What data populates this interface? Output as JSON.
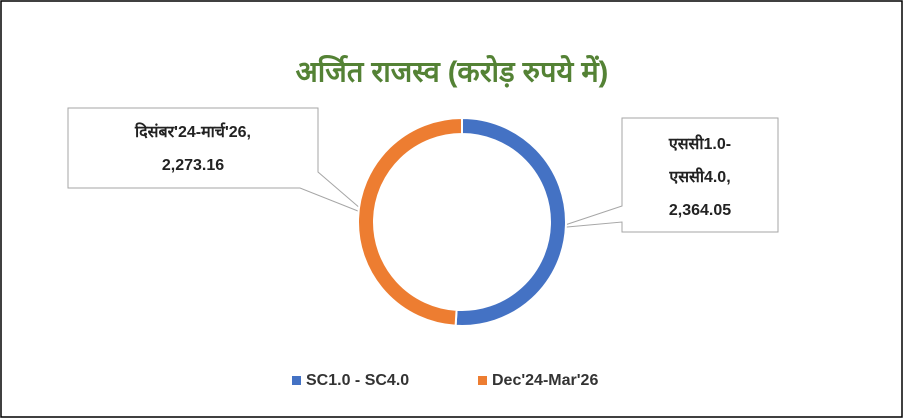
{
  "chart_data": {
    "type": "donut",
    "title": "अर्जित राजस्व (करोड़ रुपये में)",
    "categories": [
      "SC1.0 - SC4.0",
      "Dec'24-Mar'26"
    ],
    "values": [
      2364.05,
      2273.16
    ],
    "value_labels": [
      "2,364.05",
      "2,273.16"
    ],
    "data_label_names": [
      "एससी1.0-एससी4.0,",
      "दिसंबर'24-मार्च'26,"
    ],
    "colors": [
      "#4472c4",
      "#ed7d31"
    ],
    "title_color": "#548235",
    "legend": "bottom"
  }
}
